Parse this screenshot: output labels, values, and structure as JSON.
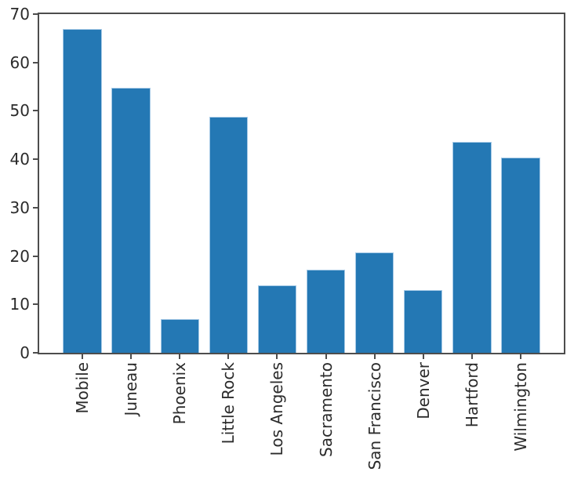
{
  "figure": {
    "background_color": "#ffffff",
    "spine_color": "#4d4d4d",
    "text_color": "#2b2b2b"
  },
  "chart_data": {
    "type": "bar",
    "title": "",
    "xlabel": "",
    "ylabel": "",
    "categories": [
      "Mobile",
      "Juneau",
      "Phoenix",
      "Little Rock",
      "Los Angeles",
      "Sacramento",
      "San Francisco",
      "Denver",
      "Hartford",
      "Wilmington"
    ],
    "values": [
      67.0,
      54.8,
      7.0,
      48.7,
      14.0,
      17.1,
      20.8,
      13.0,
      43.6,
      40.4
    ],
    "ylim": [
      0,
      70
    ],
    "yticks": [
      0,
      10,
      20,
      30,
      40,
      50,
      60,
      70
    ],
    "grid": false,
    "legend_position": "none",
    "bar_color": "#2478b4",
    "bar_edge_color": "#a5c9e6",
    "bar_width_fraction": 0.8,
    "x_tick_label_rotation_deg": 90
  }
}
